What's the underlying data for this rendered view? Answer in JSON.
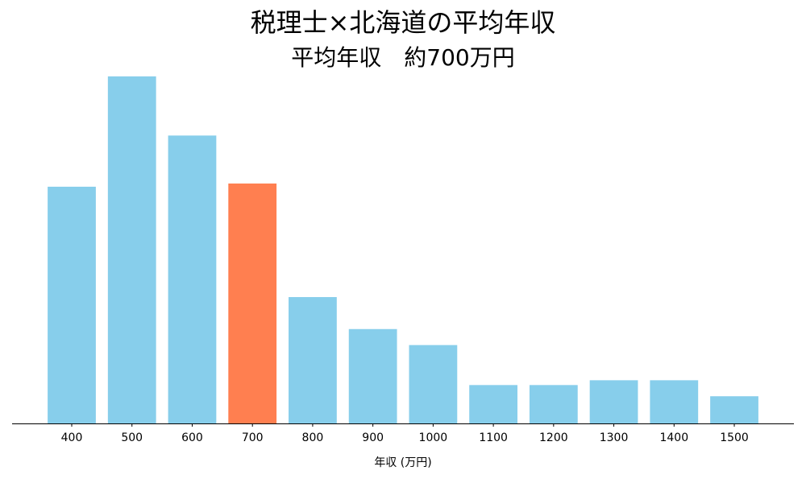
{
  "chart_data": {
    "type": "bar",
    "title": "税理士×北海道の平均年収",
    "subtitle": "平均年収　約700万円",
    "x_label": "年収 (万円)",
    "categories": [
      "400",
      "500",
      "600",
      "700",
      "800",
      "900",
      "1000",
      "1100",
      "1200",
      "1300",
      "1400",
      "1500"
    ],
    "values": [
      14.8,
      21.7,
      18.0,
      15.0,
      7.9,
      5.9,
      4.9,
      2.4,
      2.4,
      2.7,
      2.7,
      1.7
    ],
    "colors": [
      "#87ceeb",
      "#87ceeb",
      "#87ceeb",
      "#ff7f50",
      "#87ceeb",
      "#87ceeb",
      "#87ceeb",
      "#87ceeb",
      "#87ceeb",
      "#87ceeb",
      "#87ceeb",
      "#87ceeb"
    ],
    "ylim": [
      0,
      22.8
    ]
  }
}
